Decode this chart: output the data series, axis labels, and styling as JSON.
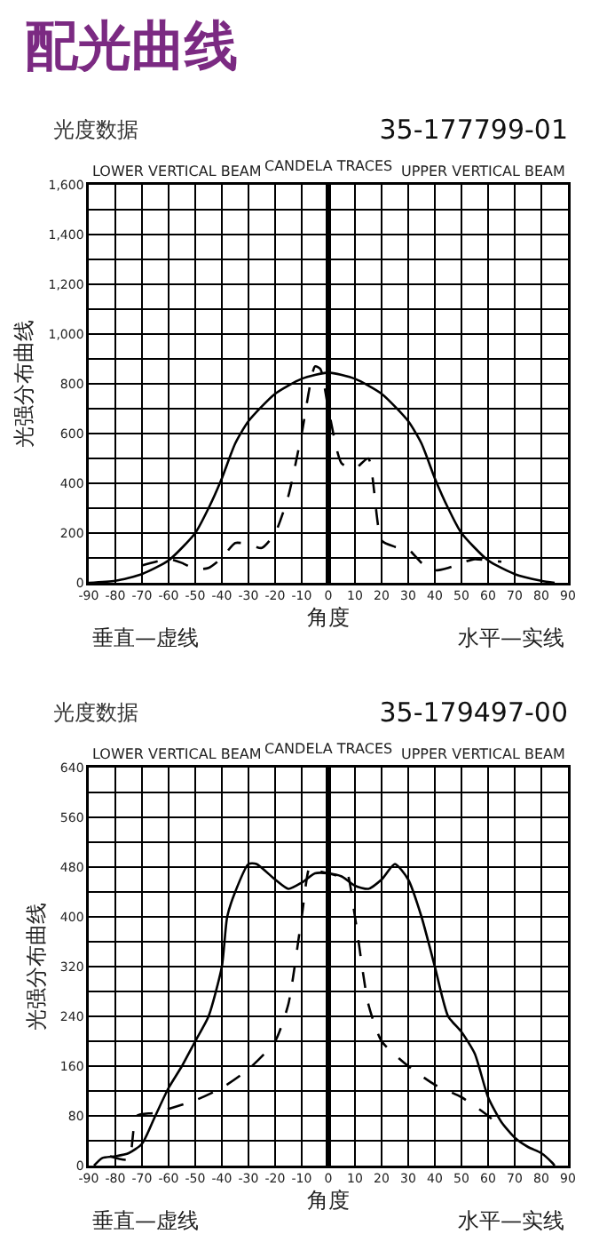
{
  "chart_data": [
    {
      "type": "other",
      "title": "配光曲线"
    },
    {
      "type": "line",
      "title": "光度数据",
      "subtitle": "35-177799-01",
      "xlabel": "角度",
      "ylabel": "光强分布曲线",
      "annotations": [
        "LOWER VERTICAL BEAM",
        "CANDELA TRACES",
        "UPPER VERTICAL BEAM",
        "垂直—虚线",
        "水平—实线"
      ],
      "series": [
        {
          "color": "#000000",
          "line_style": "solid",
          "x": [
            -90,
            -80,
            -70,
            -60,
            -50,
            -45,
            -40,
            -35,
            -30,
            -20,
            -10,
            0,
            10,
            20,
            30,
            35,
            40,
            45,
            50,
            60,
            70,
            80,
            85
          ],
          "values": [
            0,
            8,
            35,
            90,
            200,
            300,
            420,
            560,
            650,
            760,
            820,
            845,
            820,
            760,
            650,
            560,
            420,
            300,
            200,
            90,
            35,
            8,
            0
          ]
        },
        {
          "color": "#000000",
          "line_style": "dashed",
          "x": [
            -70,
            -60,
            -55,
            -50,
            -45,
            -40,
            -35,
            -30,
            -25,
            -20,
            -15,
            -10,
            -5,
            -3,
            0,
            5,
            10,
            15,
            20,
            25,
            30,
            35,
            40,
            45,
            50,
            55,
            60,
            65
          ],
          "values": [
            70,
            95,
            80,
            55,
            60,
            100,
            160,
            155,
            140,
            200,
            350,
            600,
            870,
            860,
            700,
            480,
            460,
            500,
            170,
            145,
            135,
            80,
            50,
            60,
            80,
            95,
            90,
            85
          ]
        }
      ],
      "xlim": [
        -90,
        90
      ],
      "xticks": [
        -90,
        -80,
        -70,
        -60,
        -50,
        -40,
        -30,
        -20,
        -10,
        0,
        10,
        20,
        30,
        40,
        50,
        60,
        70,
        80,
        90
      ],
      "ylim": [
        0,
        1600
      ],
      "yticks": [
        0,
        {
          "value": 100,
          "label": null
        },
        {
          "value": 200,
          "label": "200"
        },
        {
          "value": 300,
          "label": null
        },
        {
          "value": 400,
          "label": "400"
        },
        {
          "value": 500,
          "label": null
        },
        {
          "value": 600,
          "label": "600"
        },
        {
          "value": 700,
          "label": null
        },
        {
          "value": 800,
          "label": "800"
        },
        {
          "value": 900,
          "label": null
        },
        {
          "value": 1000,
          "label": "1,000"
        },
        {
          "value": 1100,
          "label": null
        },
        {
          "value": 1200,
          "label": "1,200"
        },
        {
          "value": 1300,
          "label": null
        },
        {
          "value": 1400,
          "label": "1,400"
        },
        {
          "value": 1500,
          "label": null
        },
        {
          "value": 1600,
          "label": "1,600"
        }
      ],
      "grid": true,
      "marker": "none",
      "ref_lines": [
        {
          "axis": "x",
          "value": 0,
          "color": "#000000"
        }
      ]
    },
    {
      "type": "line",
      "title": "光度数据",
      "subtitle": "35-179497-00",
      "xlabel": "角度",
      "ylabel": "光强分布曲线",
      "annotations": [
        "LOWER VERTICAL BEAM",
        "CANDELA TRACES",
        "UPPER VERTICAL BEAM",
        "垂直—虚线",
        "水平—实线"
      ],
      "series": [
        {
          "color": "#000000",
          "line_style": "solid",
          "x": [
            -88,
            -85,
            -80,
            -75,
            -70,
            -65,
            -60,
            -55,
            -50,
            -45,
            -40,
            -38,
            -35,
            -30,
            -27,
            -20,
            -15,
            -10,
            -5,
            0,
            5,
            10,
            15,
            20,
            25,
            30,
            35,
            40,
            45,
            50,
            55,
            60,
            65,
            70,
            75,
            80,
            84,
            85
          ],
          "values": [
            0,
            12,
            15,
            20,
            35,
            80,
            125,
            160,
            200,
            240,
            320,
            400,
            440,
            485,
            485,
            460,
            445,
            455,
            470,
            470,
            465,
            450,
            445,
            460,
            485,
            460,
            400,
            320,
            240,
            215,
            180,
            110,
            70,
            45,
            30,
            20,
            5,
            0
          ]
        },
        {
          "color": "#000000",
          "line_style": "dashed",
          "x": [
            -82,
            -75,
            -72,
            -65,
            -50,
            -40,
            -30,
            -20,
            -15,
            -10,
            -7,
            -5,
            0,
            5,
            7,
            10,
            15,
            20,
            30,
            40,
            50,
            60,
            65
          ],
          "values": [
            15,
            10,
            80,
            85,
            105,
            125,
            155,
            200,
            260,
            400,
            480,
            475,
            470,
            465,
            470,
            400,
            260,
            200,
            160,
            130,
            110,
            80,
            60
          ]
        }
      ],
      "xlim": [
        -90,
        90
      ],
      "xticks": [
        -90,
        -80,
        -70,
        -60,
        -50,
        -40,
        -30,
        -20,
        -10,
        0,
        10,
        20,
        30,
        40,
        50,
        60,
        70,
        80,
        90
      ],
      "ylim": [
        0,
        640
      ],
      "yticks": [
        0,
        {
          "value": 40,
          "label": null
        },
        80,
        {
          "value": 120,
          "label": null
        },
        160,
        {
          "value": 200,
          "label": null
        },
        240,
        {
          "value": 280,
          "label": null
        },
        320,
        {
          "value": 360,
          "label": null
        },
        400,
        {
          "value": 440,
          "label": null
        },
        480,
        {
          "value": 520,
          "label": null
        },
        560,
        {
          "value": 600,
          "label": null
        },
        640
      ],
      "grid": true,
      "marker": "none",
      "ref_lines": [
        {
          "axis": "x",
          "value": 0,
          "color": "#000000"
        }
      ]
    }
  ]
}
